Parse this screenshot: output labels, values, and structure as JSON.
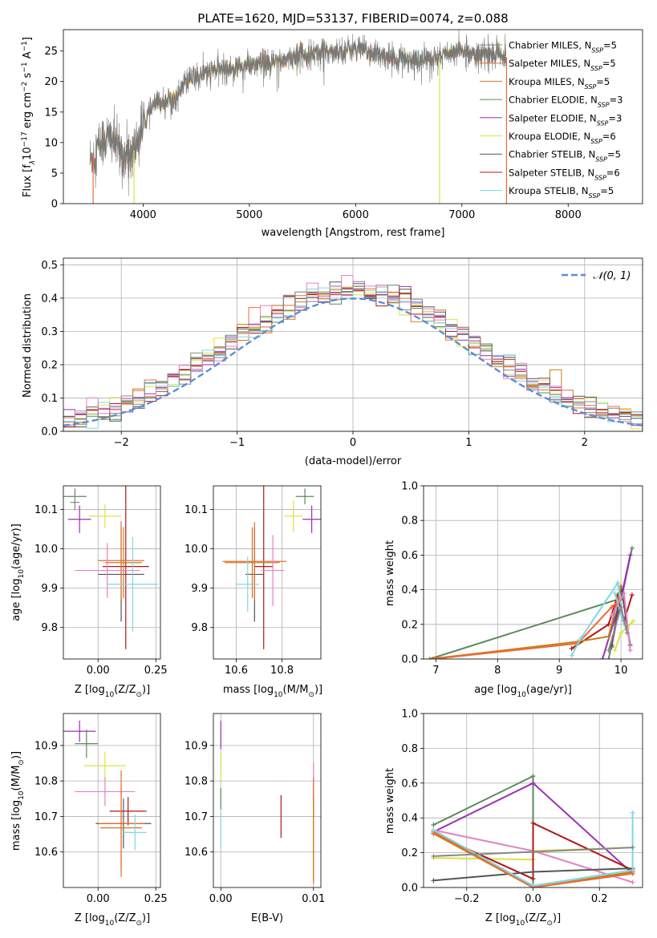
{
  "colors": {
    "Chabrier MILES": "#888888",
    "Salpeter MILES": "#ee6a34",
    "Kroupa MILES": "#c47f1c",
    "Chabrier ELODIE": "#5c8a5c",
    "Salpeter ELODIE": "#9b30b5",
    "Kroupa ELODIE": "#d9e340",
    "Chabrier STELIB": "#555555",
    "Salpeter STELIB": "#b01818",
    "Kroupa STELIB": "#7ed8e0",
    "pink": "#e383c4",
    "green2": "#6bbb4a",
    "normal": "#5b8ed6"
  },
  "chart_data": [
    {
      "id": "spectrum",
      "type": "line",
      "title": "PLATE=1620, MJD=53137, FIBERID=0074, z=0.088",
      "xlabel": "wavelength [Angstrom, rest frame]",
      "ylabel_parts": [
        "Flux [f",
        "λ",
        "10",
        "−17",
        " erg cm",
        "−2",
        " s",
        "−1",
        " A",
        "−1",
        "]"
      ],
      "xlim": [
        3250,
        8700
      ],
      "ylim": [
        0,
        28.5
      ],
      "xticks": [
        4000,
        5000,
        6000,
        7000,
        8000
      ],
      "yticks": [
        0,
        5,
        10,
        15,
        20,
        25
      ],
      "legend": [
        {
          "label": "Chabrier MILES",
          "nssp": "5"
        },
        {
          "label": "Salpeter MILES",
          "nssp": "5"
        },
        {
          "label": "Kroupa MILES",
          "nssp": "5"
        },
        {
          "label": "Chabrier ELODIE",
          "nssp": "3"
        },
        {
          "label": "Salpeter ELODIE",
          "nssp": "3"
        },
        {
          "label": "Kroupa ELODIE",
          "nssp": "6"
        },
        {
          "label": "Chabrier STELIB",
          "nssp": "5"
        },
        {
          "label": "Salpeter STELIB",
          "nssp": "6"
        },
        {
          "label": "Kroupa STELIB",
          "nssp": "5"
        }
      ],
      "continuum": [
        [
          3500,
          7
        ],
        [
          3600,
          10
        ],
        [
          3700,
          11
        ],
        [
          3800,
          8
        ],
        [
          3900,
          8
        ],
        [
          4000,
          13
        ],
        [
          4100,
          16
        ],
        [
          4200,
          17
        ],
        [
          4300,
          17
        ],
        [
          4400,
          20
        ],
        [
          4500,
          21
        ],
        [
          4700,
          22
        ],
        [
          5000,
          22.5
        ],
        [
          5200,
          23
        ],
        [
          5500,
          24.5
        ],
        [
          5800,
          25
        ],
        [
          6000,
          25.5
        ],
        [
          6300,
          24
        ],
        [
          6600,
          23.5
        ],
        [
          7000,
          25
        ],
        [
          7300,
          24.5
        ],
        [
          7420,
          24
        ]
      ]
    },
    {
      "id": "residuals",
      "type": "histogram",
      "xlabel": "(data-model)/error",
      "ylabel": "Normed distribution",
      "xlim": [
        -2.5,
        2.5
      ],
      "ylim": [
        0,
        0.52
      ],
      "xticks": [
        -2,
        -1,
        0,
        1,
        2
      ],
      "yticks": [
        0.0,
        0.1,
        0.2,
        0.3,
        0.4,
        0.5
      ],
      "legend": "𝒩(0, 1)",
      "legend_position": "top-right",
      "bin_width": 0.1,
      "bin_start": -2.5
    },
    {
      "id": "age-Z",
      "type": "scatter",
      "xlabel": "Z [log10(Z/Z⊙)]",
      "ylabel": "age  [log10(age/yr)]",
      "xlim": [
        -0.15,
        0.27
      ],
      "ylim": [
        9.72,
        10.16
      ],
      "xticks": [
        0.0,
        0.25
      ],
      "yticks": [
        9.8,
        9.9,
        10.0,
        10.1
      ],
      "points": [
        {
          "m": "Chabrier ELODIE",
          "x": -0.1,
          "y": 10.133,
          "xe": 0.05,
          "ye": 0.02
        },
        {
          "m": "Salpeter ELODIE",
          "x": -0.08,
          "y": 10.075,
          "xe": 0.05,
          "ye": 0.035
        },
        {
          "m": "Kroupa ELODIE",
          "x": 0.03,
          "y": 10.083,
          "xe": 0.07,
          "ye": 0.03
        },
        {
          "m": "Chabrier STELIB",
          "x": 0.1,
          "y": 9.935,
          "xe": 0.1,
          "ye": 0.12
        },
        {
          "m": "Salpeter STELIB",
          "x": 0.12,
          "y": 9.955,
          "xe": 0.1,
          "ye": 0.21
        },
        {
          "m": "Salpeter MILES",
          "x": 0.1,
          "y": 9.97,
          "xe": 0.1,
          "ye": 0.1
        },
        {
          "m": "Kroupa MILES",
          "x": 0.11,
          "y": 9.965,
          "xe": 0.08,
          "ye": 0.09
        },
        {
          "m": "Kroupa STELIB",
          "x": 0.15,
          "y": 9.91,
          "xe": 0.11,
          "ye": 0.12
        },
        {
          "m": "pink",
          "x": 0.04,
          "y": 9.945,
          "xe": 0.14,
          "ye": 0.07
        },
        {
          "m": "Chabrier MILES",
          "x": -0.1,
          "y": 10.118,
          "xe": 0.02,
          "ye": 0.02
        }
      ]
    },
    {
      "id": "age-mass",
      "type": "scatter",
      "xlabel": "mass [log10(M/M⊙)]",
      "ylabel": "",
      "xlim": [
        10.5,
        10.97
      ],
      "ylim": [
        9.72,
        10.16
      ],
      "xticks": [
        10.6,
        10.8
      ],
      "yticks": [
        9.8,
        9.9,
        10.0,
        10.1
      ],
      "points": [
        {
          "m": "Chabrier ELODIE",
          "x": 10.9,
          "y": 10.133,
          "xe": 0.04,
          "ye": 0.02
        },
        {
          "m": "Salpeter ELODIE",
          "x": 10.93,
          "y": 10.075,
          "xe": 0.04,
          "ye": 0.035
        },
        {
          "m": "Kroupa ELODIE",
          "x": 10.85,
          "y": 10.083,
          "xe": 0.04,
          "ye": 0.04
        },
        {
          "m": "Chabrier STELIB",
          "x": 10.68,
          "y": 9.935,
          "xe": 0.04,
          "ye": 0.12
        },
        {
          "m": "Salpeter STELIB",
          "x": 10.72,
          "y": 9.955,
          "xe": 0.04,
          "ye": 0.21
        },
        {
          "m": "Salpeter MILES",
          "x": 10.68,
          "y": 9.968,
          "xe": 0.14,
          "ye": 0.1
        },
        {
          "m": "Kroupa MILES",
          "x": 10.67,
          "y": 9.965,
          "xe": 0.12,
          "ye": 0.09
        },
        {
          "m": "Kroupa STELIB",
          "x": 10.65,
          "y": 9.91,
          "xe": 0.05,
          "ye": 0.07
        },
        {
          "m": "pink",
          "x": 10.76,
          "y": 9.945,
          "xe": 0.05,
          "ye": 0.09
        }
      ]
    },
    {
      "id": "weights-age",
      "type": "line",
      "xlabel": "age  [log10(age/yr)]",
      "ylabel": "mass weight",
      "xlim": [
        6.8,
        10.35
      ],
      "ylim": [
        0,
        1.0
      ],
      "xticks": [
        7,
        8,
        9,
        10
      ],
      "yticks": [
        0.0,
        0.2,
        0.4,
        0.6,
        0.8,
        1.0
      ]
    },
    {
      "id": "mass-Z",
      "type": "scatter",
      "xlabel": "Z [log10(Z/Z⊙)]",
      "ylabel": "mass [log10(M/M⊙)]",
      "xlim": [
        -0.15,
        0.27
      ],
      "ylim": [
        10.5,
        10.99
      ],
      "xticks": [
        0.0,
        0.25
      ],
      "yticks": [
        10.6,
        10.7,
        10.8,
        10.9
      ],
      "points": [
        {
          "m": "Salpeter ELODIE",
          "x": -0.08,
          "y": 10.94,
          "xe": 0.07,
          "ye": 0.03
        },
        {
          "m": "Chabrier ELODIE",
          "x": -0.05,
          "y": 10.905,
          "xe": 0.05,
          "ye": 0.04
        },
        {
          "m": "Kroupa ELODIE",
          "x": 0.03,
          "y": 10.843,
          "xe": 0.09,
          "ye": 0.04
        },
        {
          "m": "pink",
          "x": 0.03,
          "y": 10.77,
          "xe": 0.13,
          "ye": 0.04
        },
        {
          "m": "Salpeter STELIB",
          "x": 0.13,
          "y": 10.715,
          "xe": 0.08,
          "ye": 0.04
        },
        {
          "m": "Chabrier STELIB",
          "x": 0.11,
          "y": 10.68,
          "xe": 0.12,
          "ye": 0.07
        },
        {
          "m": "Kroupa MILES",
          "x": 0.1,
          "y": 10.668,
          "xe": 0.09,
          "ye": 0.12
        },
        {
          "m": "Salpeter MILES",
          "x": 0.1,
          "y": 10.68,
          "xe": 0.1,
          "ye": 0.15
        },
        {
          "m": "Kroupa STELIB",
          "x": 0.16,
          "y": 10.655,
          "xe": 0.05,
          "ye": 0.05
        }
      ]
    },
    {
      "id": "mass-ebv",
      "type": "scatter",
      "xlabel": "E(B-V)",
      "ylabel": "",
      "xlim": [
        -0.0008,
        0.0108
      ],
      "ylim": [
        10.5,
        10.99
      ],
      "xticks": [
        0.0,
        0.01
      ],
      "xtick_labels": [
        "0.00",
        "0.01"
      ],
      "yticks": [
        10.6,
        10.7,
        10.8,
        10.9
      ],
      "points": [
        {
          "m": "Salpeter ELODIE",
          "x": 0.0,
          "y": 10.93,
          "xe": 0,
          "ye": 0.04
        },
        {
          "m": "Kroupa ELODIE",
          "x": 0.0,
          "y": 10.84,
          "xe": 0,
          "ye": 0.04
        },
        {
          "m": "Chabrier ELODIE",
          "x": 0.0,
          "y": 10.75,
          "xe": 0,
          "ye": 0.03
        },
        {
          "m": "Kroupa STELIB",
          "x": 0.0,
          "y": 10.66,
          "xe": 0,
          "ye": 0.05
        },
        {
          "m": "Salpeter STELIB",
          "x": 0.0065,
          "y": 10.7,
          "xe": 0,
          "ye": 0.06
        },
        {
          "m": "pink",
          "x": 0.01,
          "y": 10.78,
          "xe": 0,
          "ye": 0.07
        },
        {
          "m": "Salpeter MILES",
          "x": 0.01,
          "y": 10.66,
          "xe": 0,
          "ye": 0.15
        },
        {
          "m": "Kroupa MILES",
          "x": 0.01,
          "y": 10.64,
          "xe": 0,
          "ye": 0.12
        }
      ]
    },
    {
      "id": "weights-Z",
      "type": "line",
      "xlabel": "Z [log10(Z/Z⊙)]",
      "ylabel": "mass weight",
      "xlim": [
        -0.33,
        0.33
      ],
      "ylim": [
        0,
        1.0
      ],
      "xticks": [
        -0.2,
        0.0,
        0.2
      ],
      "yticks": [
        0.0,
        0.2,
        0.4,
        0.6,
        0.8,
        1.0
      ]
    }
  ]
}
